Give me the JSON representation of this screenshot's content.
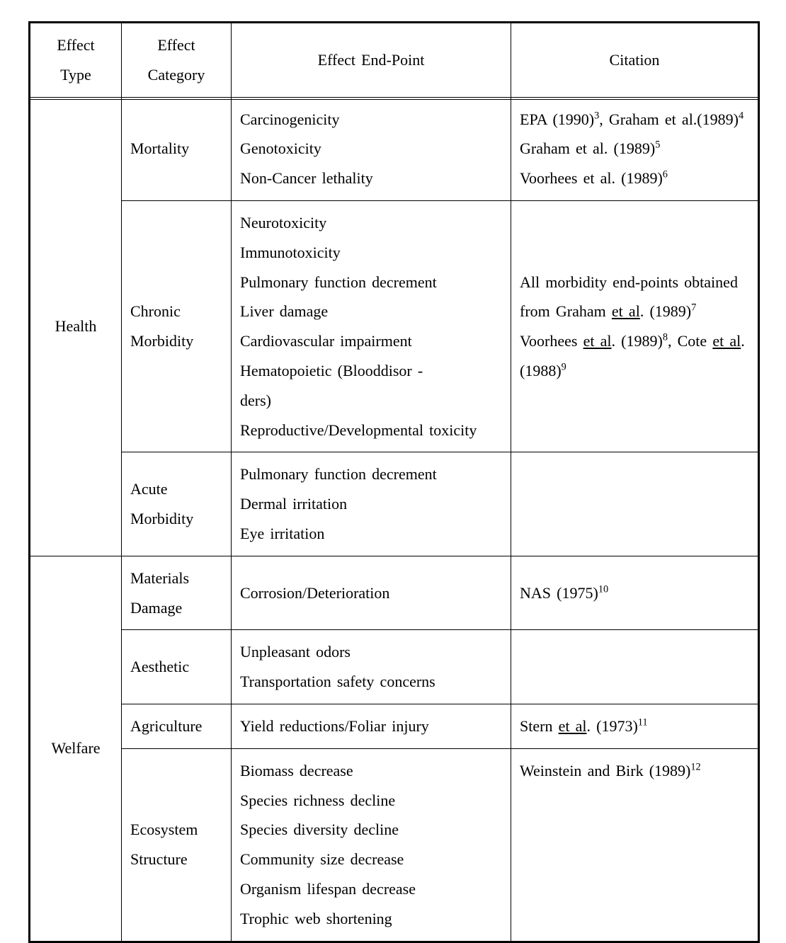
{
  "table": {
    "headers": {
      "effect_type": "Effect Type",
      "effect_category": "Effect Category",
      "effect_endpoint": "Effect End-Point",
      "citation": "Citation"
    },
    "groups": [
      {
        "type": "Health",
        "rows": [
          {
            "category": "Mortality",
            "endpoints_html": "Carcinogenicity<br>Genotoxicity<br>Non-Cancer lethality",
            "citation_html": "EPA (1990)<sup>3</sup>, Graham et al.(1989)<sup>4</sup><br>Graham et al. (1989)<sup>5</sup><br>Voorhees et al. (1989)<sup>6</sup>",
            "cite_top": false
          },
          {
            "category": "Chronic Morbidity",
            "endpoints_html": "Neurotoxicity<br>Immunotoxicity<br>Pulmonary function decrement<br>Liver damage<br>Cardiovascular impairment<br>Hematopoietic (Blooddisor -<br>ders)<br>Reproductive/Developmental toxicity",
            "citation_html": "All morbidity end-points obtained from Graham <span class=\"u\">et al</span>. (1989)<sup>7</sup> Voorhees <span class=\"u\">et al</span>. (1989)<sup>8</sup>, Cote <span class=\"u\">et al</span>. (1988)<sup>9</sup>",
            "cite_top": false
          },
          {
            "category": "Acute Morbidity",
            "endpoints_html": "Pulmonary function decrement<br>Dermal irritation<br>Eye irritation",
            "citation_html": "",
            "cite_top": false
          }
        ]
      },
      {
        "type": "Welfare",
        "rows": [
          {
            "category": "Materials Damage",
            "endpoints_html": "Corrosion/Deterioration",
            "citation_html": "NAS (1975)<sup>10</sup>",
            "cite_top": false
          },
          {
            "category": "Aesthetic",
            "endpoints_html": "Unpleasant odors<br>Transportation safety concerns",
            "citation_html": "",
            "cite_top": false
          },
          {
            "category": "Agriculture",
            "endpoints_html": "Yield reductions/Foliar injury",
            "citation_html": "Stern <span class=\"u\">et al</span>. (1973)<sup>11</sup>",
            "cite_top": false
          },
          {
            "category": "Ecosystem Structure",
            "endpoints_html": "Biomass decrease<br>Species richness decline<br>Species diversity decline<br>Community size decrease<br>Organism lifespan decrease<br>Trophic web shortening",
            "citation_html": "Weinstein and Birk (1989)<sup>12</sup>",
            "cite_top": true
          }
        ]
      }
    ]
  }
}
